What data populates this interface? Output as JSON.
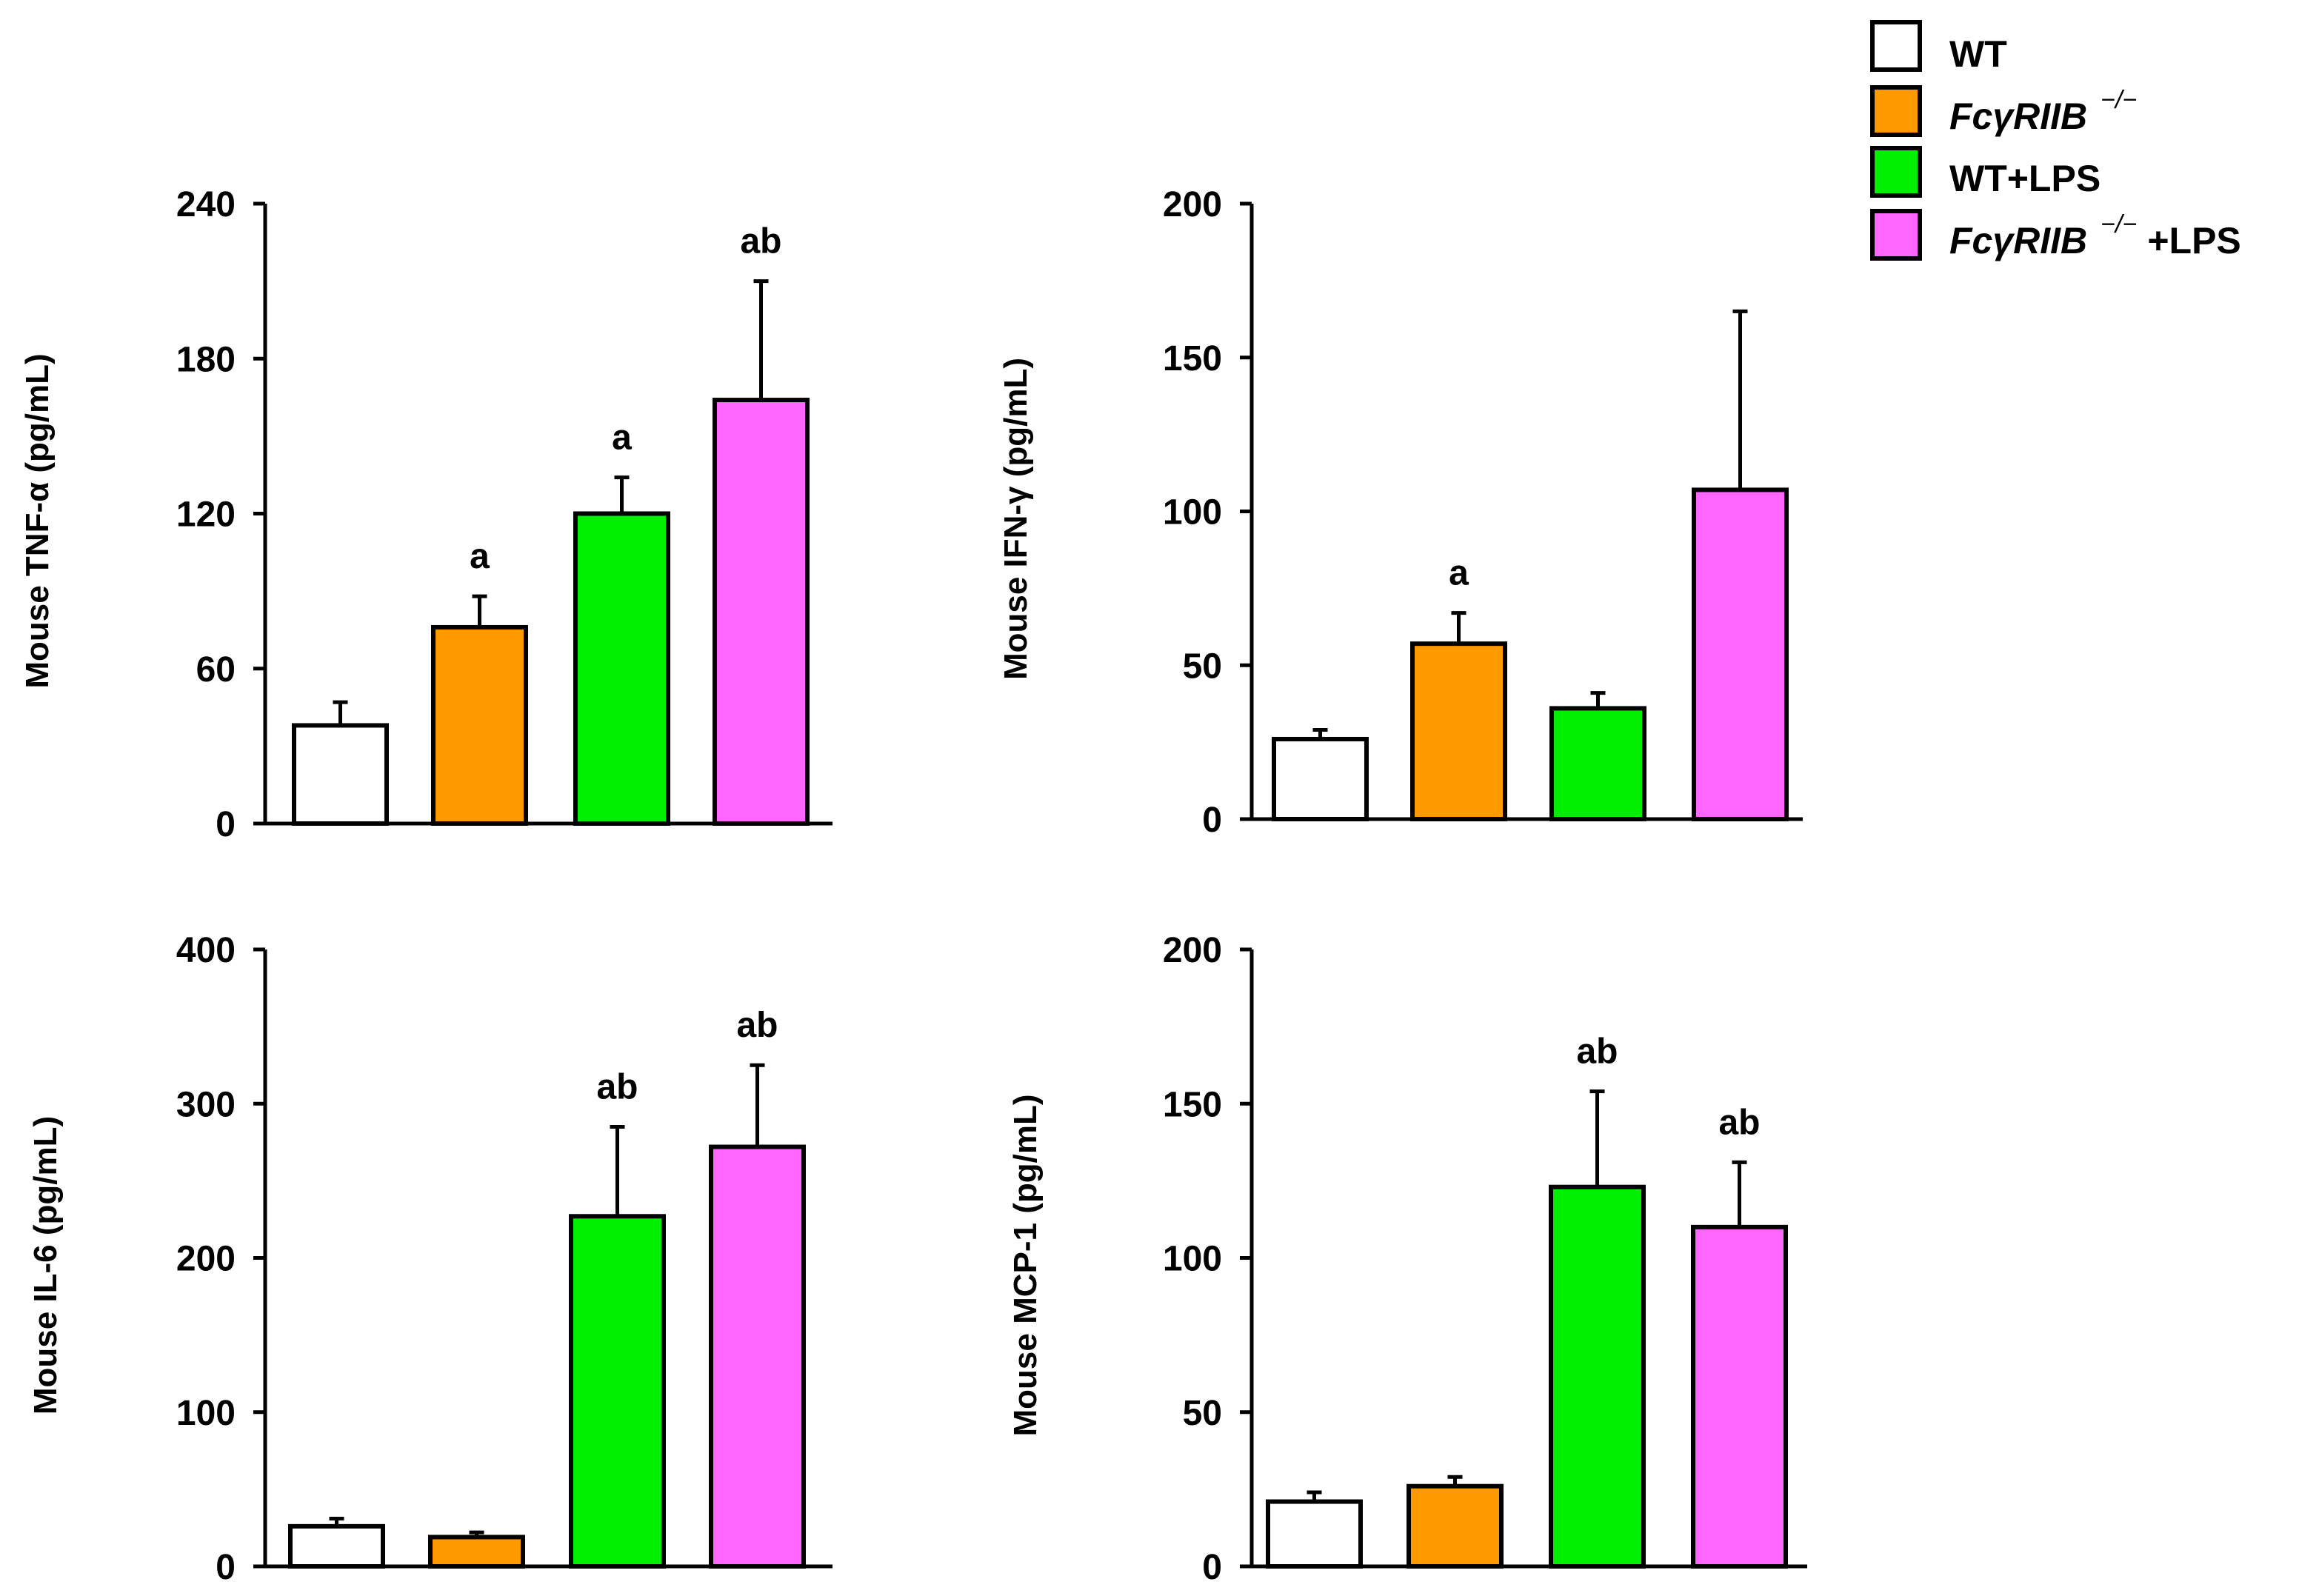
{
  "chart_data": [
    {
      "type": "bar",
      "ylabel": "Mouse TNF-α (pg/mL)",
      "ylim": [
        0,
        240
      ],
      "yticks": [
        0,
        60,
        120,
        180,
        240
      ],
      "categories": [
        "WT",
        "FcγRIIB−/−",
        "WT+LPS",
        "FcγRIIB−/−+LPS"
      ],
      "values": [
        38,
        76,
        120,
        164
      ],
      "errors": [
        9,
        12,
        14,
        46
      ],
      "annotations": [
        "",
        "a",
        "a",
        "ab"
      ]
    },
    {
      "type": "bar",
      "ylabel": "Mouse IFN-γ  (pg/mL)",
      "ylim": [
        0,
        200
      ],
      "yticks": [
        0,
        50,
        100,
        150,
        200
      ],
      "categories": [
        "WT",
        "FcγRIIB−/−",
        "WT+LPS",
        "FcγRIIB−/−+LPS"
      ],
      "values": [
        26,
        57,
        36,
        107
      ],
      "errors": [
        3,
        10,
        5,
        58
      ],
      "annotations": [
        "",
        "a",
        "",
        ""
      ]
    },
    {
      "type": "bar",
      "ylabel": "Mouse IL-6  (pg/mL)",
      "ylim": [
        0,
        400
      ],
      "yticks": [
        0,
        100,
        200,
        300,
        400
      ],
      "categories": [
        "WT",
        "FcγRIIB−/−",
        "WT+LPS",
        "FcγRIIB−/−+LPS"
      ],
      "values": [
        26,
        19,
        227,
        272
      ],
      "errors": [
        5,
        3,
        58,
        53
      ],
      "annotations": [
        "",
        "",
        "ab",
        "ab"
      ]
    },
    {
      "type": "bar",
      "ylabel": "Mouse MCP-1  (pg/mL)",
      "ylim": [
        0,
        200
      ],
      "yticks": [
        0,
        50,
        100,
        150,
        200
      ],
      "categories": [
        "WT",
        "FcγRIIB−/−",
        "WT+LPS",
        "FcγRIIB−/−+LPS"
      ],
      "values": [
        21,
        26,
        123,
        110
      ],
      "errors": [
        3,
        3,
        31,
        21
      ],
      "annotations": [
        "",
        "",
        "ab",
        "ab"
      ]
    }
  ],
  "legend": {
    "items": [
      {
        "base": "WT",
        "italic": "",
        "sup": "",
        "suffix": "",
        "color": "#ffffff"
      },
      {
        "base": "",
        "italic": "FcγRIIB",
        "sup": "−/−",
        "suffix": "",
        "color": "#ff9900"
      },
      {
        "base": "WT+LPS",
        "italic": "",
        "sup": "",
        "suffix": "",
        "color": "#00ee00"
      },
      {
        "base": "",
        "italic": "FcγRIIB",
        "sup": "−/−",
        "suffix": "+LPS",
        "color": "#ff66ff"
      }
    ]
  }
}
